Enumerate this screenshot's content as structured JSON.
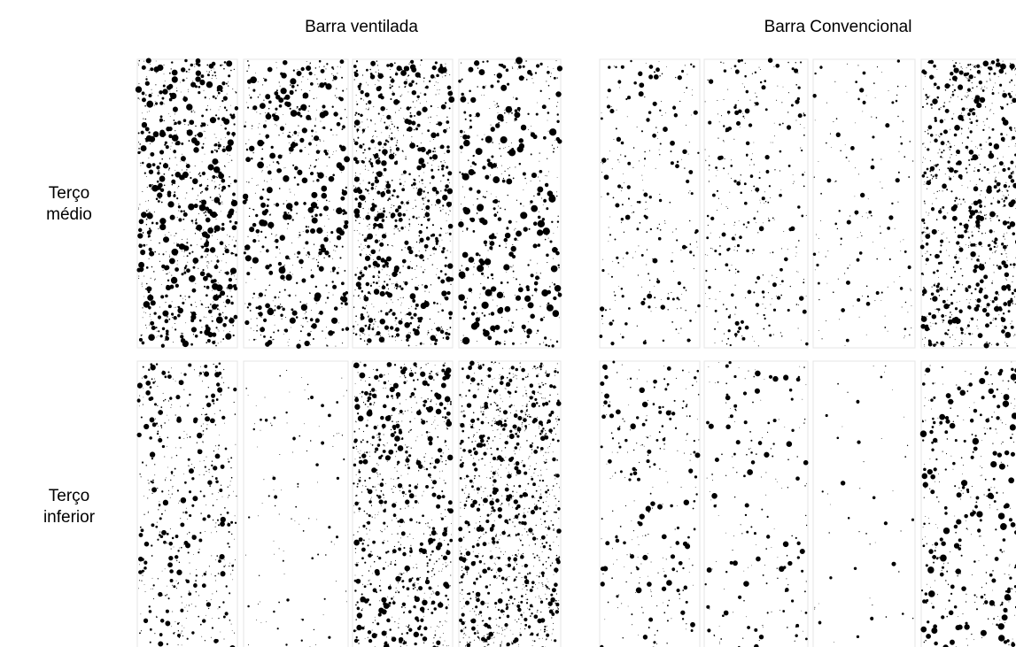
{
  "columns": [
    "Barra ventilada",
    "Barra Convencional"
  ],
  "rows": [
    [
      "Terço",
      "médio"
    ],
    [
      "Terço",
      "inferior"
    ]
  ]
}
